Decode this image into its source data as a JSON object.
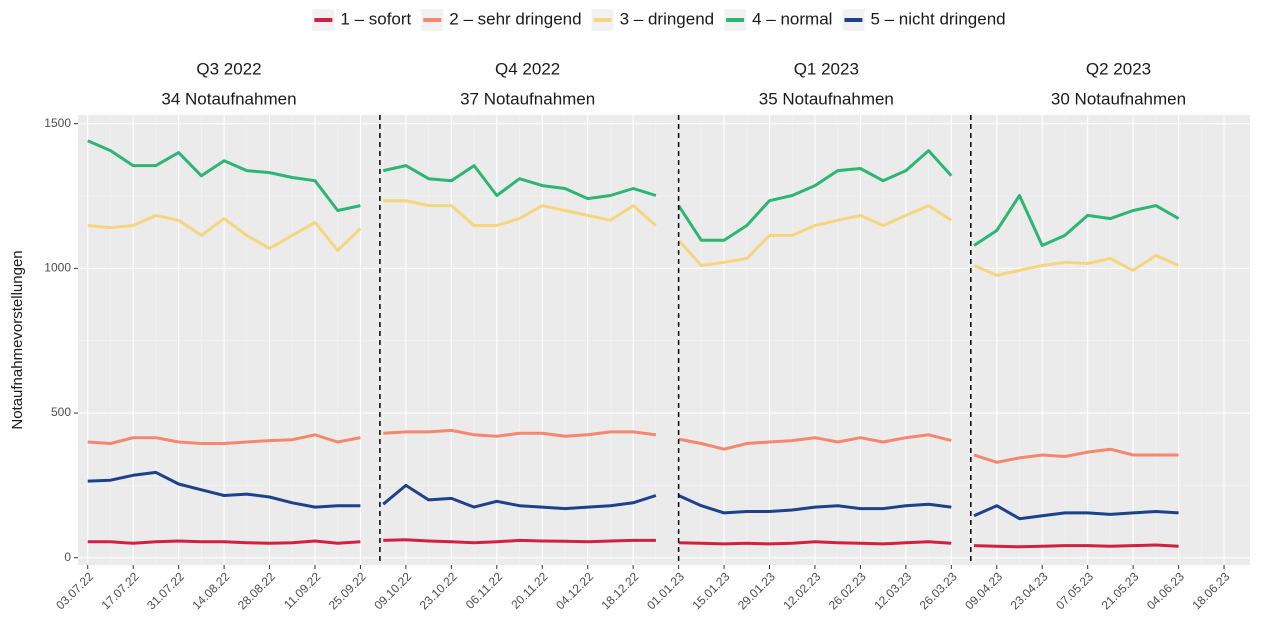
{
  "chart_data": {
    "type": "line",
    "y_label": "Notaufnahmevorstellungen",
    "x": [
      "2022-07-03",
      "2022-07-10",
      "2022-07-17",
      "2022-07-24",
      "2022-07-31",
      "2022-08-07",
      "2022-08-14",
      "2022-08-21",
      "2022-08-28",
      "2022-09-04",
      "2022-09-11",
      "2022-09-18",
      "2022-09-25",
      "2022-10-02",
      "2022-10-09",
      "2022-10-16",
      "2022-10-23",
      "2022-10-30",
      "2022-11-06",
      "2022-11-13",
      "2022-11-20",
      "2022-11-27",
      "2022-12-04",
      "2022-12-11",
      "2022-12-18",
      "2022-12-25",
      "2023-01-01",
      "2023-01-08",
      "2023-01-15",
      "2023-01-22",
      "2023-01-29",
      "2023-02-05",
      "2023-02-12",
      "2023-02-19",
      "2023-02-26",
      "2023-03-05",
      "2023-03-12",
      "2023-03-19",
      "2023-03-26",
      "2023-04-02",
      "2023-04-09",
      "2023-04-16",
      "2023-04-23",
      "2023-04-30",
      "2023-05-07",
      "2023-05-14",
      "2023-05-21",
      "2023-05-28",
      "2023-06-04"
    ],
    "series": [
      {
        "name": "1 – sofort",
        "color": "#d0213f",
        "values": [
          55,
          55,
          50,
          55,
          58,
          55,
          55,
          52,
          50,
          52,
          58,
          50,
          55,
          60,
          62,
          58,
          55,
          52,
          55,
          60,
          58,
          57,
          55,
          58,
          60,
          60,
          52,
          50,
          48,
          50,
          48,
          50,
          55,
          52,
          50,
          48,
          52,
          55,
          50,
          42,
          40,
          38,
          40,
          42,
          42,
          40,
          42,
          44,
          40
        ]
      },
      {
        "name": "2 – sehr dringend",
        "color": "#f4876d",
        "values": [
          400,
          395,
          415,
          415,
          400,
          395,
          395,
          400,
          405,
          408,
          425,
          400,
          415,
          430,
          435,
          435,
          440,
          425,
          420,
          430,
          430,
          420,
          425,
          435,
          435,
          425,
          410,
          395,
          375,
          395,
          400,
          405,
          415,
          400,
          415,
          400,
          415,
          425,
          405,
          355,
          330,
          345,
          355,
          350,
          365,
          375,
          355,
          355,
          355
        ]
      },
      {
        "name": "3 – dringend",
        "color": "#f5d67f",
        "values": [
          1148,
          1141,
          1148,
          1183,
          1166,
          1114,
          1172,
          1114,
          1069,
          1114,
          1159,
          1062,
          1138,
          1234,
          1234,
          1217,
          1217,
          1148,
          1148,
          1172,
          1217,
          1200,
          1183,
          1166,
          1217,
          1148,
          1097,
          1010,
          1021,
          1034,
          1114,
          1114,
          1148,
          1166,
          1183,
          1148,
          1183,
          1217,
          1166,
          1010,
          976,
          993,
          1010,
          1021,
          1017,
          1034,
          993,
          1045,
          1010
        ]
      },
      {
        "name": "4 – normal",
        "color": "#2bb673",
        "values": [
          1441,
          1407,
          1355,
          1355,
          1400,
          1320,
          1372,
          1338,
          1331,
          1314,
          1303,
          1200,
          1217,
          1338,
          1355,
          1310,
          1303,
          1355,
          1252,
          1310,
          1286,
          1276,
          1241,
          1252,
          1276,
          1252,
          1217,
          1097,
          1097,
          1148,
          1234,
          1252,
          1286,
          1338,
          1345,
          1303,
          1338,
          1407,
          1320,
          1079,
          1131,
          1252,
          1079,
          1114,
          1183,
          1172,
          1200,
          1217,
          1172
        ]
      },
      {
        "name": "5 – nicht dringend",
        "color": "#1d428a",
        "values": [
          265,
          268,
          285,
          295,
          255,
          235,
          215,
          220,
          210,
          190,
          175,
          180,
          180,
          185,
          250,
          200,
          205,
          175,
          195,
          180,
          175,
          170,
          175,
          180,
          190,
          215,
          215,
          180,
          155,
          160,
          160,
          165,
          175,
          180,
          170,
          170,
          180,
          185,
          175,
          145,
          180,
          135,
          145,
          155,
          155,
          150,
          155,
          160,
          155
        ]
      }
    ],
    "quarters": [
      {
        "label": "Q3 2022",
        "count": "34 Notaufnahmen",
        "start": "2022-07-01"
      },
      {
        "label": "Q4 2022",
        "count": "37 Notaufnahmen",
        "start": "2022-10-01"
      },
      {
        "label": "Q1 2023",
        "count": "35 Notaufnahmen",
        "start": "2023-01-01"
      },
      {
        "label": "Q2 2023",
        "count": "30 Notaufnahmen",
        "start": "2023-04-01"
      }
    ],
    "boundaries": [
      "2022-10-01",
      "2023-01-01",
      "2023-04-01"
    ],
    "xlim": [
      "2022-06-30",
      "2023-06-26"
    ],
    "xticks": [
      {
        "value": "2022-07-03",
        "label": "03.07.22"
      },
      {
        "value": "2022-07-17",
        "label": "17.07.22"
      },
      {
        "value": "2022-07-31",
        "label": "31.07.22"
      },
      {
        "value": "2022-08-14",
        "label": "14.08.22"
      },
      {
        "value": "2022-08-28",
        "label": "28.08.22"
      },
      {
        "value": "2022-09-11",
        "label": "11.09.22"
      },
      {
        "value": "2022-09-25",
        "label": "25.09.22"
      },
      {
        "value": "2022-10-09",
        "label": "09.10.22"
      },
      {
        "value": "2022-10-23",
        "label": "23.10.22"
      },
      {
        "value": "2022-11-06",
        "label": "06.11.22"
      },
      {
        "value": "2022-11-20",
        "label": "20.11.22"
      },
      {
        "value": "2022-12-04",
        "label": "04.12.22"
      },
      {
        "value": "2022-12-18",
        "label": "18.12.22"
      },
      {
        "value": "2023-01-01",
        "label": "01.01.23"
      },
      {
        "value": "2023-01-15",
        "label": "15.01.23"
      },
      {
        "value": "2023-01-29",
        "label": "29.01.23"
      },
      {
        "value": "2023-02-12",
        "label": "12.02.23"
      },
      {
        "value": "2023-02-26",
        "label": "26.02.23"
      },
      {
        "value": "2023-03-12",
        "label": "12.03.23"
      },
      {
        "value": "2023-03-26",
        "label": "26.03.23"
      },
      {
        "value": "2023-04-09",
        "label": "09.04.23"
      },
      {
        "value": "2023-04-23",
        "label": "23.04.23"
      },
      {
        "value": "2023-05-07",
        "label": "07.05.23"
      },
      {
        "value": "2023-05-21",
        "label": "21.05.23"
      },
      {
        "value": "2023-06-04",
        "label": "04.06.23"
      },
      {
        "value": "2023-06-18",
        "label": "18.06.23"
      }
    ],
    "ylim": [
      -25,
      1530
    ],
    "yticks": [
      0,
      500,
      1000,
      1500
    ],
    "grid": true,
    "legend": "top"
  }
}
